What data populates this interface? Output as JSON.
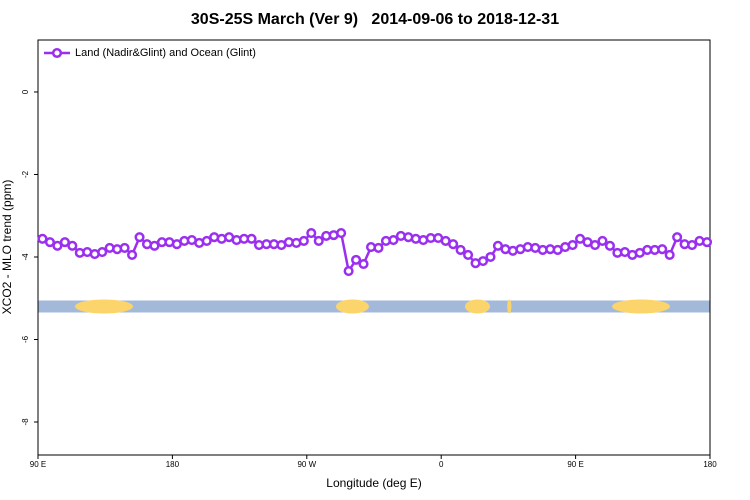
{
  "chart_data": {
    "type": "line",
    "title": "30S-25S March (Ver 9)   2014-09-06 to 2018-12-31",
    "x_label": "Longitude (deg E)",
    "y_label": "XCO2 - MLO trend (ppm)",
    "xlim": [
      90,
      540
    ],
    "ylim": [
      -8.8,
      1.26
    ],
    "xticks": [
      {
        "value": 90,
        "label": "90 E"
      },
      {
        "value": 180,
        "label": "180"
      },
      {
        "value": 270,
        "label": "90 W"
      },
      {
        "value": 360,
        "label": "0"
      },
      {
        "value": 450,
        "label": "90 E"
      },
      {
        "value": 540,
        "label": "180"
      }
    ],
    "yticks": [
      0,
      -2,
      -4,
      -6,
      -8
    ],
    "legend_position": "top-left",
    "x": [
      93,
      98,
      103,
      108,
      113,
      118,
      123,
      128,
      133,
      138,
      143,
      148,
      153,
      158,
      163,
      168,
      173,
      178,
      183,
      188,
      193,
      198,
      203,
      208,
      213,
      218,
      223,
      228,
      233,
      238,
      243,
      248,
      253,
      258,
      263,
      268,
      273,
      278,
      283,
      288,
      293,
      298,
      303,
      308,
      313,
      318,
      323,
      328,
      333,
      338,
      343,
      348,
      353,
      358,
      363,
      368,
      373,
      378,
      383,
      388,
      393,
      398,
      403,
      408,
      413,
      418,
      423,
      428,
      433,
      438,
      443,
      448,
      453,
      458,
      463,
      468,
      473,
      478,
      483,
      488,
      493,
      498,
      503,
      508,
      513,
      518,
      523,
      528,
      533,
      538
    ],
    "series": [
      {
        "name": "Land (Nadir&Glint) and Ocean (Glint)",
        "color": "#9b2ff0",
        "values": [
          -3.56,
          -3.64,
          -3.73,
          -3.64,
          -3.73,
          -3.9,
          -3.88,
          -3.93,
          -3.88,
          -3.78,
          -3.81,
          -3.78,
          -3.95,
          -3.52,
          -3.69,
          -3.73,
          -3.64,
          -3.64,
          -3.69,
          -3.61,
          -3.59,
          -3.66,
          -3.61,
          -3.52,
          -3.56,
          -3.52,
          -3.59,
          -3.56,
          -3.56,
          -3.71,
          -3.69,
          -3.69,
          -3.71,
          -3.64,
          -3.66,
          -3.61,
          -3.42,
          -3.61,
          -3.49,
          -3.47,
          -3.42,
          -4.34,
          -4.07,
          -4.17,
          -3.76,
          -3.78,
          -3.61,
          -3.59,
          -3.49,
          -3.52,
          -3.56,
          -3.59,
          -3.54,
          -3.54,
          -3.61,
          -3.69,
          -3.83,
          -3.95,
          -4.15,
          -4.1,
          -4.0,
          -3.73,
          -3.81,
          -3.85,
          -3.81,
          -3.76,
          -3.78,
          -3.83,
          -3.81,
          -3.83,
          -3.76,
          -3.71,
          -3.56,
          -3.64,
          -3.71,
          -3.61,
          -3.73,
          -3.9,
          -3.88,
          -3.95,
          -3.9,
          -3.83,
          -3.83,
          -3.81,
          -3.95,
          -3.52,
          -3.69,
          -3.71,
          -3.61,
          -3.64
        ]
      }
    ],
    "land_band": {
      "y": -5.2,
      "ocean_color": "#a3b9d9",
      "land_color": "#fbd56b",
      "land_ranges": [
        [
          114.8,
          153.6
        ],
        [
          289.5,
          311.6
        ],
        [
          375.9,
          392.7
        ],
        [
          404.2,
          407.0
        ],
        [
          474.4,
          513.2
        ]
      ]
    }
  }
}
